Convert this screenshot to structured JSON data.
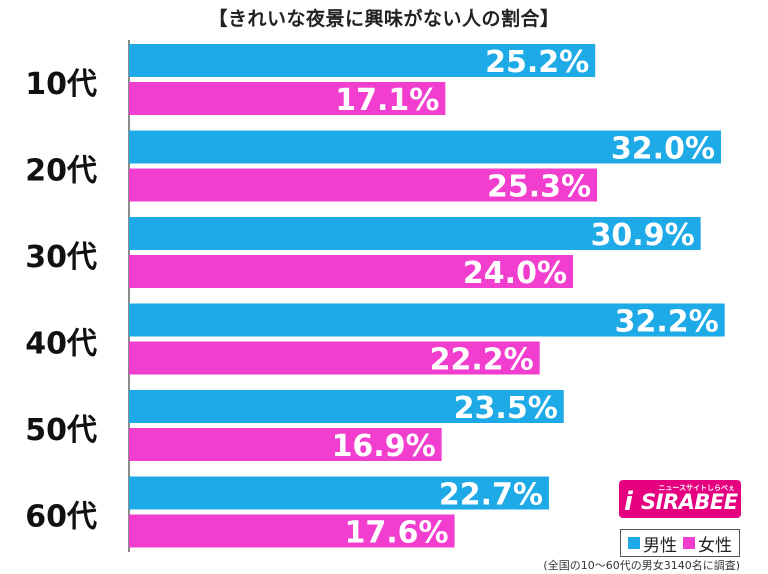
{
  "chart_data": {
    "type": "bar",
    "orientation": "horizontal",
    "title": "【きれいな夜景に興味がない人の割合】",
    "categories": [
      "10代",
      "20代",
      "30代",
      "40代",
      "50代",
      "60代"
    ],
    "series": [
      {
        "name": "男性",
        "color": "#1eaae7",
        "values": [
          25.2,
          32.0,
          30.9,
          32.2,
          23.5,
          22.7
        ],
        "labels": [
          "25.2%",
          "32.0%",
          "30.9%",
          "32.2%",
          "23.5%",
          "22.7%"
        ]
      },
      {
        "name": "女性",
        "color": "#f23ecf",
        "values": [
          17.1,
          25.3,
          24.0,
          22.2,
          16.9,
          17.6
        ],
        "labels": [
          "17.1%",
          "25.3%",
          "24.0%",
          "22.2%",
          "16.9%",
          "17.6%"
        ]
      }
    ],
    "xlim": [
      0,
      35
    ],
    "grid": false,
    "legend_position": "bottom-right"
  },
  "footnote": "(全国の10〜60代の男女3140名に調査)",
  "logo": {
    "top_text": "ニュースサイトしらべぇ",
    "main_text": "SIRABEE",
    "i_text": "i"
  }
}
